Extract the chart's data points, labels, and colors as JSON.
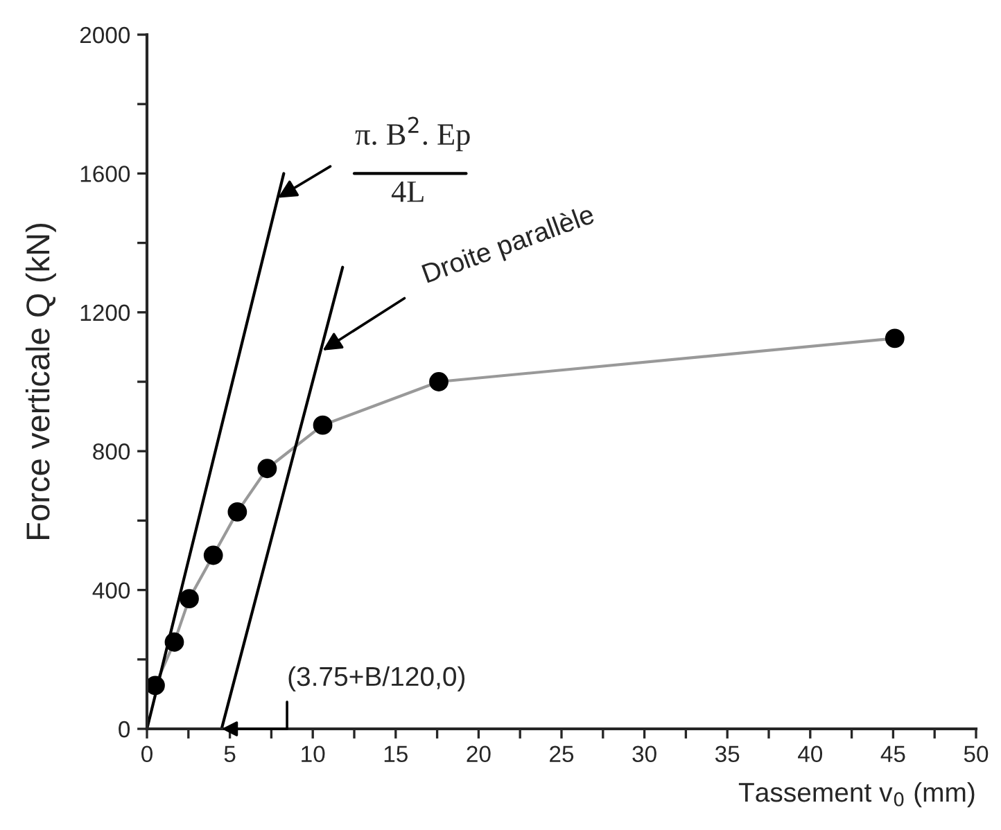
{
  "chart_data": {
    "type": "line",
    "xlabel": "Tassement v$_{0}$ (mm)",
    "ylabel": "Force verticale Q (kN)",
    "series": [
      {
        "color": "#999999",
        "marker": "circle",
        "x": [
          0.5,
          1.65,
          2.55,
          4.0,
          5.45,
          7.25,
          10.6,
          17.6,
          45.1
        ],
        "values": [
          125,
          250,
          375,
          500,
          625,
          750,
          875,
          1000,
          1125
        ]
      },
      {
        "color": "#000000",
        "marker": "none",
        "x": [
          0,
          8.25
        ],
        "values": [
          0,
          1600
        ]
      },
      {
        "color": "#000000",
        "marker": "none",
        "x": [
          4.5,
          11.8
        ],
        "values": [
          0,
          1330
        ]
      }
    ],
    "annotations": [
      {
        "text": "π. B$^{2}$. Ep",
        "x": 7.9,
        "y": 1530
      },
      "4L",
      {
        "text": "Droite parallèle",
        "x": 10.6,
        "y": 1090
      },
      {
        "text": "(3.75+B/120,0)",
        "x": 4.5,
        "y": 0
      }
    ],
    "xlim": [
      0,
      50
    ],
    "ylim": [
      0,
      2000
    ],
    "xticks": [
      0,
      {
        "value": 2.5,
        "label": null
      },
      5,
      {
        "value": 7.5,
        "label": null
      },
      10,
      {
        "value": 12.5,
        "label": null
      },
      15,
      {
        "value": 17.5,
        "label": null
      },
      20,
      {
        "value": 22.5,
        "label": null
      },
      25,
      {
        "value": 27.5,
        "label": null
      },
      30,
      {
        "value": 32.5,
        "label": null
      },
      35,
      {
        "value": 37.5,
        "label": null
      },
      40,
      {
        "value": 42.5,
        "label": null
      },
      45,
      {
        "value": 47.5,
        "label": null
      },
      50
    ],
    "yticks": [
      0,
      {
        "value": 200,
        "label": null
      },
      400,
      {
        "value": 600,
        "label": null
      },
      800,
      {
        "value": 1000,
        "label": null
      },
      1200,
      {
        "value": 1400,
        "label": null
      },
      1600,
      {
        "value": 1800,
        "label": null
      },
      2000
    ],
    "grid": false
  }
}
